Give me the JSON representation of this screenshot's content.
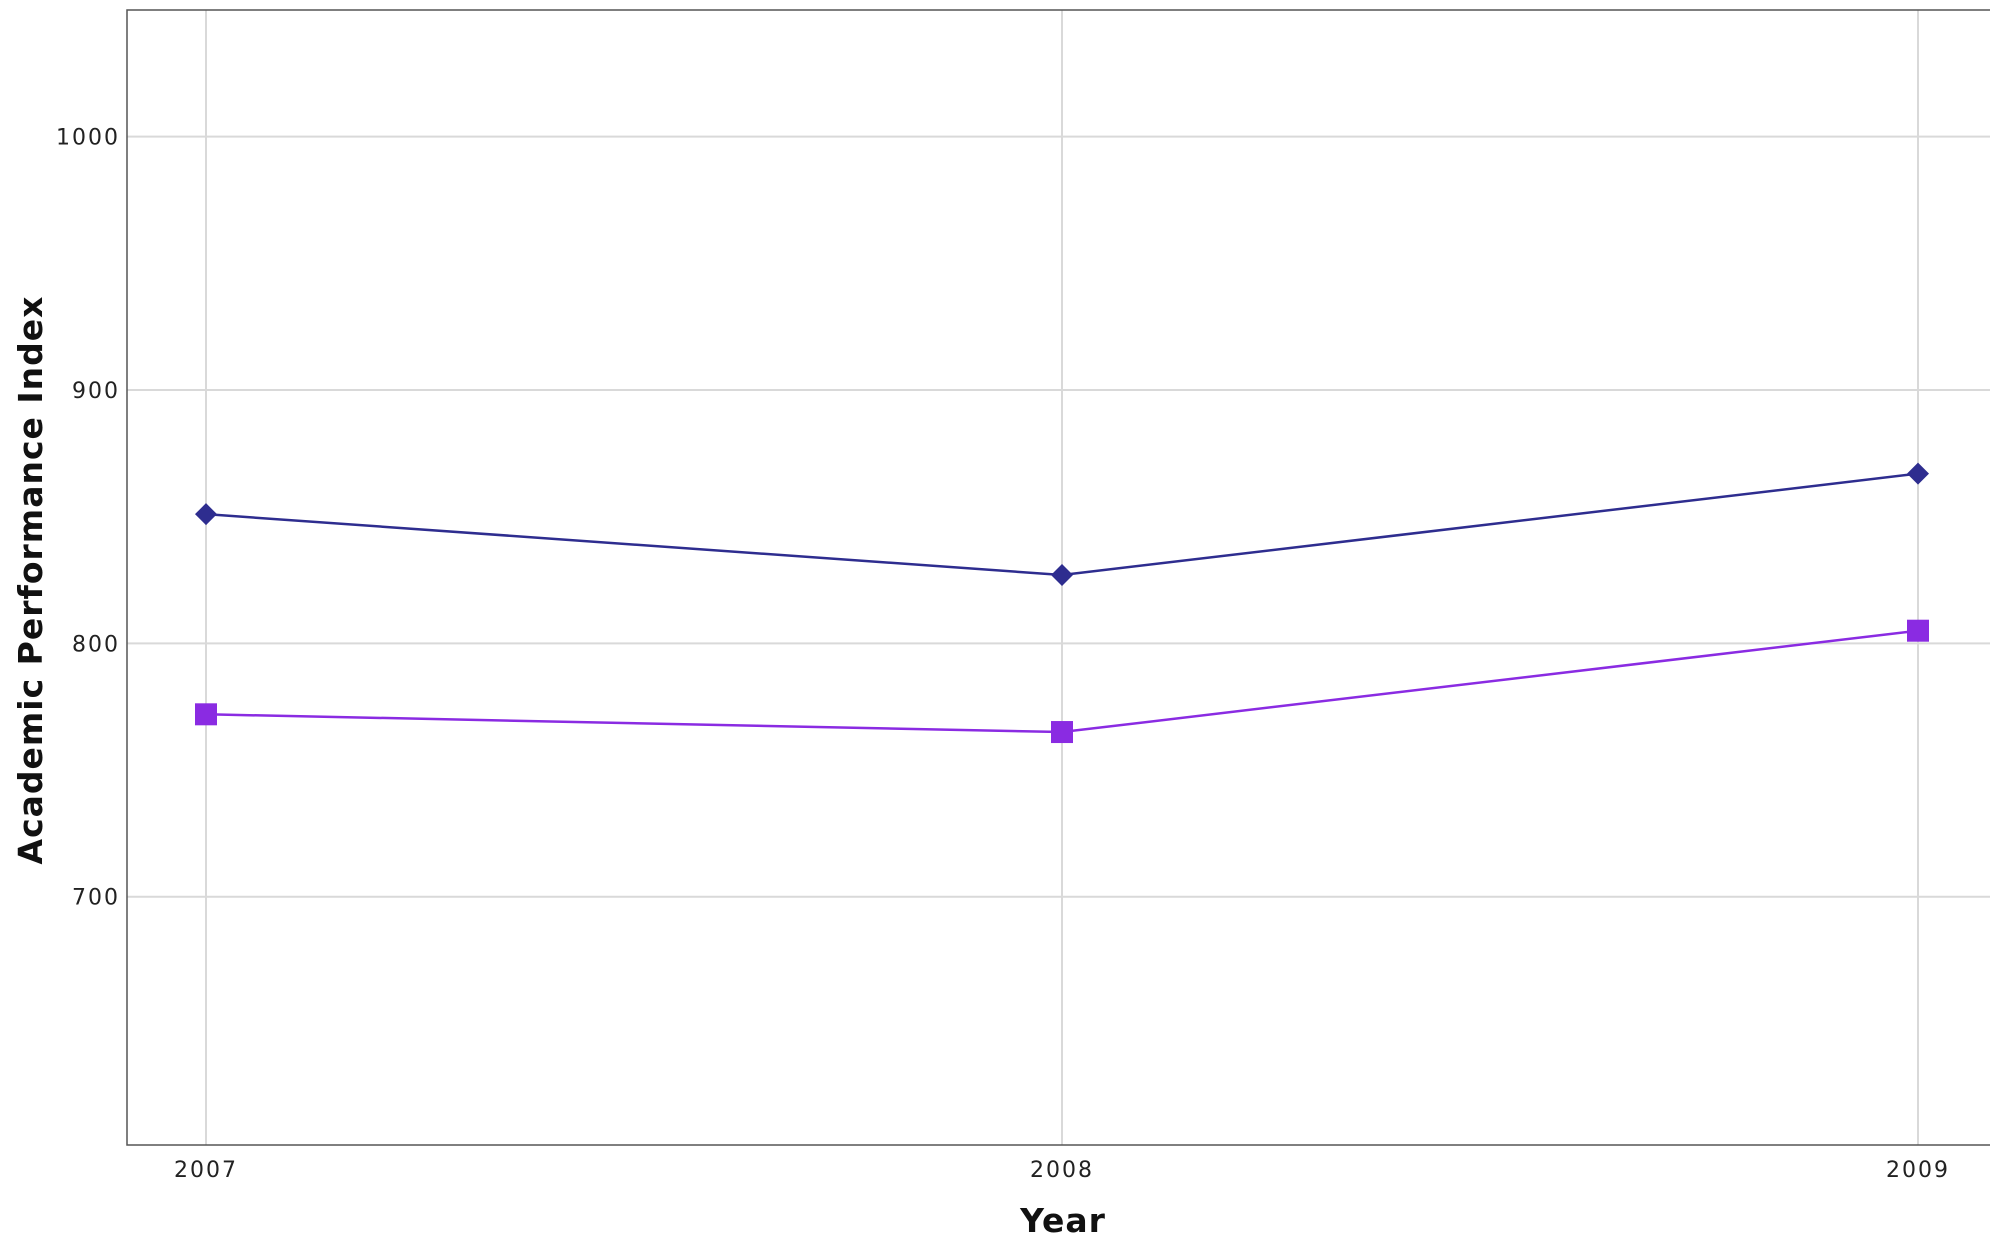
{
  "chart_data": {
    "type": "line",
    "title": "",
    "xlabel": "Year",
    "ylabel": "Academic Performance Index",
    "x": [
      2007,
      2008,
      2009
    ],
    "x_tick_labels": [
      "2007",
      "2008",
      "2009"
    ],
    "y_ticks": [
      700,
      800,
      900,
      1000
    ],
    "y_tick_labels": [
      "700",
      "800",
      "900",
      "1000"
    ],
    "ylim": [
      602,
      1050
    ],
    "grid": true,
    "series": [
      {
        "name": "",
        "color": "#2e2d8f",
        "marker": "diamond",
        "values": [
          851,
          827,
          867
        ]
      },
      {
        "name": "",
        "color": "#8a2be2",
        "marker": "square",
        "values": [
          772,
          765,
          805
        ]
      }
    ]
  }
}
